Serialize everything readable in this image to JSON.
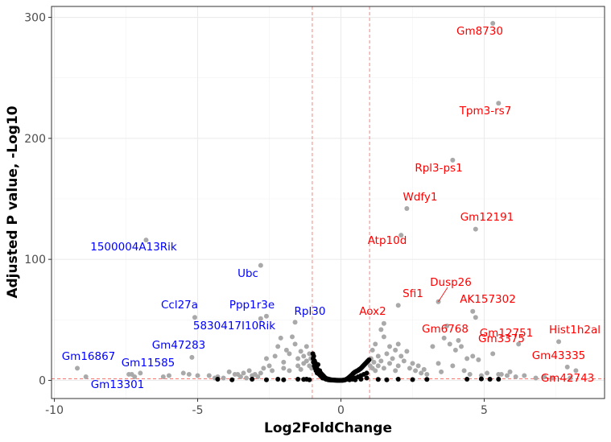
{
  "chart_data": {
    "type": "scatter",
    "title": "",
    "xlabel": "Log2FoldChange",
    "ylabel": "Adjusted P value, -Log10",
    "xlim": [
      -10.1,
      9.2
    ],
    "ylim": [
      -15,
      309
    ],
    "x_ticks": [
      -10,
      -5,
      0,
      5
    ],
    "y_ticks": [
      0,
      100,
      200,
      300
    ],
    "grid": true,
    "thresholds": {
      "x": [
        -1,
        1
      ],
      "y": 1.3
    },
    "colors": {
      "up": "#ff0000",
      "down": "#0000ff",
      "significant": "#a9a9a9",
      "nonsignificant": "#000000",
      "threshold": "#f8766d"
    },
    "labeled_genes": [
      {
        "gene": "Gm8730",
        "x": 5.3,
        "y": 295,
        "direction": "up"
      },
      {
        "gene": "Tpm3-rs7",
        "x": 5.5,
        "y": 229,
        "direction": "up"
      },
      {
        "gene": "Rpl3-ps1",
        "x": 3.9,
        "y": 182,
        "direction": "up"
      },
      {
        "gene": "Wdfy1",
        "x": 2.3,
        "y": 142,
        "direction": "up"
      },
      {
        "gene": "Gm12191",
        "x": 4.7,
        "y": 125,
        "direction": "up"
      },
      {
        "gene": "Atp10d",
        "x": 2.1,
        "y": 120,
        "direction": "up"
      },
      {
        "gene": "Dusp26",
        "x": 3.4,
        "y": 65,
        "direction": "up"
      },
      {
        "gene": "Sfi1",
        "x": 2.0,
        "y": 62,
        "direction": "up"
      },
      {
        "gene": "AK157302",
        "x": 4.6,
        "y": 57,
        "direction": "up"
      },
      {
        "gene": "Gm3375",
        "x": 4.7,
        "y": 52,
        "direction": "up"
      },
      {
        "gene": "Aox2",
        "x": 1.5,
        "y": 47,
        "direction": "up"
      },
      {
        "gene": "Gm6768",
        "x": 3.6,
        "y": 35,
        "direction": "up"
      },
      {
        "gene": "Gm12751",
        "x": 6.2,
        "y": 30,
        "direction": "up"
      },
      {
        "gene": "Hist1h2al",
        "x": 7.6,
        "y": 32,
        "direction": "up"
      },
      {
        "gene": "Gm43335",
        "x": 7.9,
        "y": 11,
        "direction": "up"
      },
      {
        "gene": "Gm42743",
        "x": 8.2,
        "y": 8,
        "direction": "up"
      },
      {
        "gene": "1500004A13Rik",
        "x": -6.8,
        "y": 116,
        "direction": "down"
      },
      {
        "gene": "Ubc",
        "x": -2.8,
        "y": 95,
        "direction": "down"
      },
      {
        "gene": "Ccl27a",
        "x": -5.1,
        "y": 52,
        "direction": "down"
      },
      {
        "gene": "Ppp1r3e",
        "x": -2.8,
        "y": 51,
        "direction": "down"
      },
      {
        "gene": "Rpl30",
        "x": -1.6,
        "y": 48,
        "direction": "down"
      },
      {
        "gene": "5830417I10Rik",
        "x": -2.6,
        "y": 53,
        "direction": "down"
      },
      {
        "gene": "Gm47283",
        "x": -5.2,
        "y": 19,
        "direction": "down"
      },
      {
        "gene": "Gm16867",
        "x": -9.2,
        "y": 10,
        "direction": "down"
      },
      {
        "gene": "Gm11585",
        "x": -7.0,
        "y": 6,
        "direction": "down"
      },
      {
        "gene": "Gm13301",
        "x": -7.2,
        "y": 3,
        "direction": "down"
      }
    ],
    "significant_points": [
      [
        -8.9,
        3
      ],
      [
        -7.4,
        5
      ],
      [
        -7.3,
        5
      ],
      [
        -6.2,
        3
      ],
      [
        -6.0,
        4
      ],
      [
        -5.5,
        6
      ],
      [
        -5.3,
        5
      ],
      [
        -5.0,
        4
      ],
      [
        -4.6,
        4
      ],
      [
        -4.4,
        2
      ],
      [
        -4.3,
        3
      ],
      [
        -4.1,
        2
      ],
      [
        -3.9,
        7
      ],
      [
        -3.7,
        5
      ],
      [
        -3.6,
        5
      ],
      [
        -3.5,
        3
      ],
      [
        -3.4,
        6
      ],
      [
        -3.3,
        2
      ],
      [
        -3.2,
        8
      ],
      [
        -3.1,
        4
      ],
      [
        -3.0,
        5
      ],
      [
        -2.9,
        3
      ],
      [
        -2.8,
        6
      ],
      [
        -2.7,
        10
      ],
      [
        -2.6,
        18
      ],
      [
        -2.5,
        12
      ],
      [
        -2.4,
        8
      ],
      [
        -2.3,
        20
      ],
      [
        -2.2,
        28
      ],
      [
        -2.1,
        35
      ],
      [
        -2.0,
        15
      ],
      [
        -2.0,
        10
      ],
      [
        -1.9,
        25
      ],
      [
        -1.8,
        22
      ],
      [
        -1.8,
        8
      ],
      [
        -1.7,
        36
      ],
      [
        -1.6,
        30
      ],
      [
        -1.5,
        18
      ],
      [
        -1.5,
        12
      ],
      [
        -1.4,
        24
      ],
      [
        -1.4,
        9
      ],
      [
        -1.3,
        20
      ],
      [
        -1.3,
        14
      ],
      [
        -1.2,
        28
      ],
      [
        -1.2,
        16
      ],
      [
        -1.1,
        22
      ],
      [
        -1.1,
        12
      ],
      [
        -1.05,
        18
      ],
      [
        -1.02,
        10
      ],
      [
        1.02,
        12
      ],
      [
        1.05,
        18
      ],
      [
        1.1,
        25
      ],
      [
        1.1,
        10
      ],
      [
        1.15,
        15
      ],
      [
        1.2,
        30
      ],
      [
        1.2,
        8
      ],
      [
        1.3,
        20
      ],
      [
        1.3,
        12
      ],
      [
        1.4,
        42
      ],
      [
        1.4,
        16
      ],
      [
        1.5,
        36
      ],
      [
        1.5,
        10
      ],
      [
        1.6,
        22
      ],
      [
        1.7,
        28
      ],
      [
        1.7,
        14
      ],
      [
        1.8,
        18
      ],
      [
        1.9,
        25
      ],
      [
        1.9,
        8
      ],
      [
        2.0,
        30
      ],
      [
        2.0,
        12
      ],
      [
        2.1,
        20
      ],
      [
        2.2,
        16
      ],
      [
        2.3,
        24
      ],
      [
        2.4,
        10
      ],
      [
        2.5,
        14
      ],
      [
        2.6,
        8
      ],
      [
        2.7,
        12
      ],
      [
        2.8,
        6
      ],
      [
        2.9,
        9
      ],
      [
        3.0,
        5
      ],
      [
        3.2,
        28
      ],
      [
        3.4,
        14
      ],
      [
        3.5,
        7
      ],
      [
        3.7,
        45
      ],
      [
        3.8,
        30
      ],
      [
        3.9,
        12
      ],
      [
        4.0,
        25
      ],
      [
        4.1,
        33
      ],
      [
        4.2,
        28
      ],
      [
        4.3,
        8
      ],
      [
        4.4,
        18
      ],
      [
        4.5,
        5
      ],
      [
        4.6,
        20
      ],
      [
        4.8,
        17
      ],
      [
        4.9,
        4
      ],
      [
        5.1,
        6
      ],
      [
        5.3,
        22
      ],
      [
        5.5,
        5
      ],
      [
        5.6,
        5
      ],
      [
        5.8,
        4
      ],
      [
        5.9,
        7
      ],
      [
        6.1,
        3
      ],
      [
        6.4,
        4
      ],
      [
        6.8,
        2
      ],
      [
        7.1,
        3
      ],
      [
        7.4,
        2
      ],
      [
        8.0,
        2
      ]
    ],
    "nonsignificant_points": [
      [
        -4.3,
        1
      ],
      [
        -3.8,
        0.5
      ],
      [
        -3.1,
        1
      ],
      [
        -2.6,
        0.5
      ],
      [
        -2.2,
        1
      ],
      [
        -2.0,
        0.5
      ],
      [
        -1.5,
        1
      ],
      [
        -1.3,
        0.8
      ],
      [
        -1.2,
        1
      ],
      [
        -1.1,
        0.5
      ],
      [
        -0.98,
        22
      ],
      [
        -0.97,
        18
      ],
      [
        -0.96,
        15
      ],
      [
        -0.95,
        20
      ],
      [
        -0.93,
        12
      ],
      [
        -0.92,
        16
      ],
      [
        -0.9,
        10
      ],
      [
        -0.88,
        14
      ],
      [
        -0.87,
        8
      ],
      [
        -0.85,
        11
      ],
      [
        -0.83,
        6
      ],
      [
        -0.82,
        9
      ],
      [
        -0.8,
        13
      ],
      [
        -0.78,
        7
      ],
      [
        -0.76,
        5
      ],
      [
        -0.74,
        8
      ],
      [
        -0.72,
        4
      ],
      [
        -0.7,
        6
      ],
      [
        -0.68,
        3
      ],
      [
        -0.66,
        5
      ],
      [
        -0.64,
        2
      ],
      [
        -0.62,
        4
      ],
      [
        -0.6,
        2
      ],
      [
        -0.58,
        3
      ],
      [
        -0.56,
        1.5
      ],
      [
        -0.54,
        2
      ],
      [
        -0.52,
        1
      ],
      [
        -0.5,
        1.5
      ],
      [
        -0.48,
        0.8
      ],
      [
        -0.46,
        1.2
      ],
      [
        -0.44,
        0.5
      ],
      [
        -0.42,
        1
      ],
      [
        -0.4,
        0.4
      ],
      [
        -0.38,
        0.7
      ],
      [
        -0.36,
        0.3
      ],
      [
        -0.34,
        0.5
      ],
      [
        -0.32,
        0.2
      ],
      [
        -0.3,
        0.4
      ],
      [
        -0.28,
        0.2
      ],
      [
        -0.26,
        0.3
      ],
      [
        -0.24,
        0.1
      ],
      [
        -0.22,
        0.2
      ],
      [
        -0.2,
        0.1
      ],
      [
        -0.18,
        0.15
      ],
      [
        -0.16,
        0.05
      ],
      [
        -0.14,
        0.1
      ],
      [
        -0.12,
        0.05
      ],
      [
        -0.1,
        0.08
      ],
      [
        -0.08,
        0.03
      ],
      [
        -0.06,
        0.05
      ],
      [
        -0.04,
        0.02
      ],
      [
        -0.02,
        0.03
      ],
      [
        0.02,
        0.03
      ],
      [
        0.04,
        0.05
      ],
      [
        0.06,
        0.1
      ],
      [
        0.08,
        0.15
      ],
      [
        0.1,
        0.2
      ],
      [
        0.12,
        0.3
      ],
      [
        0.14,
        0.4
      ],
      [
        0.16,
        0.6
      ],
      [
        0.18,
        0.8
      ],
      [
        0.2,
        1
      ],
      [
        0.22,
        1.3
      ],
      [
        0.24,
        1.6
      ],
      [
        0.26,
        2
      ],
      [
        0.28,
        2.3
      ],
      [
        0.3,
        2.8
      ],
      [
        0.32,
        3.2
      ],
      [
        0.34,
        3.6
      ],
      [
        0.36,
        4
      ],
      [
        0.38,
        4.5
      ],
      [
        0.4,
        5
      ],
      [
        0.42,
        5.5
      ],
      [
        0.44,
        6
      ],
      [
        0.46,
        6.3
      ],
      [
        0.48,
        6.7
      ],
      [
        0.5,
        7
      ],
      [
        0.52,
        7.2
      ],
      [
        0.54,
        7.5
      ],
      [
        0.56,
        7.8
      ],
      [
        0.58,
        8
      ],
      [
        0.6,
        8.3
      ],
      [
        0.62,
        8.6
      ],
      [
        0.64,
        9
      ],
      [
        0.66,
        9.3
      ],
      [
        0.68,
        9.6
      ],
      [
        0.7,
        10
      ],
      [
        0.72,
        10.5
      ],
      [
        0.74,
        11
      ],
      [
        0.76,
        11.5
      ],
      [
        0.78,
        12
      ],
      [
        0.8,
        12.5
      ],
      [
        0.82,
        13
      ],
      [
        0.84,
        13.5
      ],
      [
        0.86,
        14
      ],
      [
        0.88,
        14.5
      ],
      [
        0.9,
        15
      ],
      [
        0.92,
        15.5
      ],
      [
        0.94,
        16
      ],
      [
        0.96,
        16.5
      ],
      [
        0.98,
        17
      ],
      [
        0.3,
        0.5
      ],
      [
        0.4,
        1
      ],
      [
        0.5,
        2
      ],
      [
        0.6,
        3
      ],
      [
        0.7,
        4
      ],
      [
        0.8,
        5
      ],
      [
        0.9,
        6
      ],
      [
        0.5,
        0.5
      ],
      [
        0.7,
        1
      ],
      [
        0.9,
        2
      ],
      [
        1.3,
        0.8
      ],
      [
        1.6,
        0.5
      ],
      [
        2.0,
        1
      ],
      [
        2.5,
        0.6
      ],
      [
        3.0,
        0.8
      ],
      [
        4.4,
        1
      ],
      [
        4.9,
        1.2
      ],
      [
        5.2,
        1
      ],
      [
        5.5,
        1
      ]
    ]
  }
}
